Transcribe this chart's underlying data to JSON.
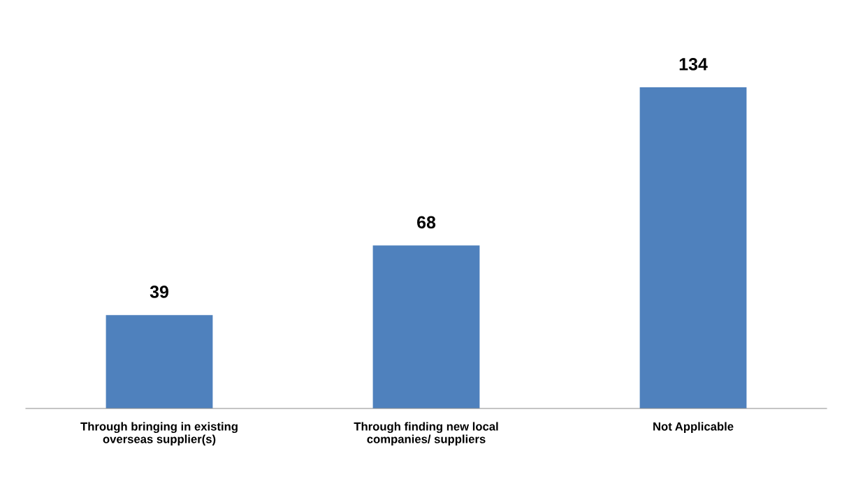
{
  "chart_data": {
    "type": "bar",
    "categories": [
      "Through bringing in existing\noverseas supplier(s)",
      "Through finding new local\ncompanies/ suppliers",
      "Not Applicable"
    ],
    "values": [
      39,
      68,
      134
    ],
    "color": "#4f81bd",
    "data_labels": true,
    "grid": false,
    "legend": false
  }
}
